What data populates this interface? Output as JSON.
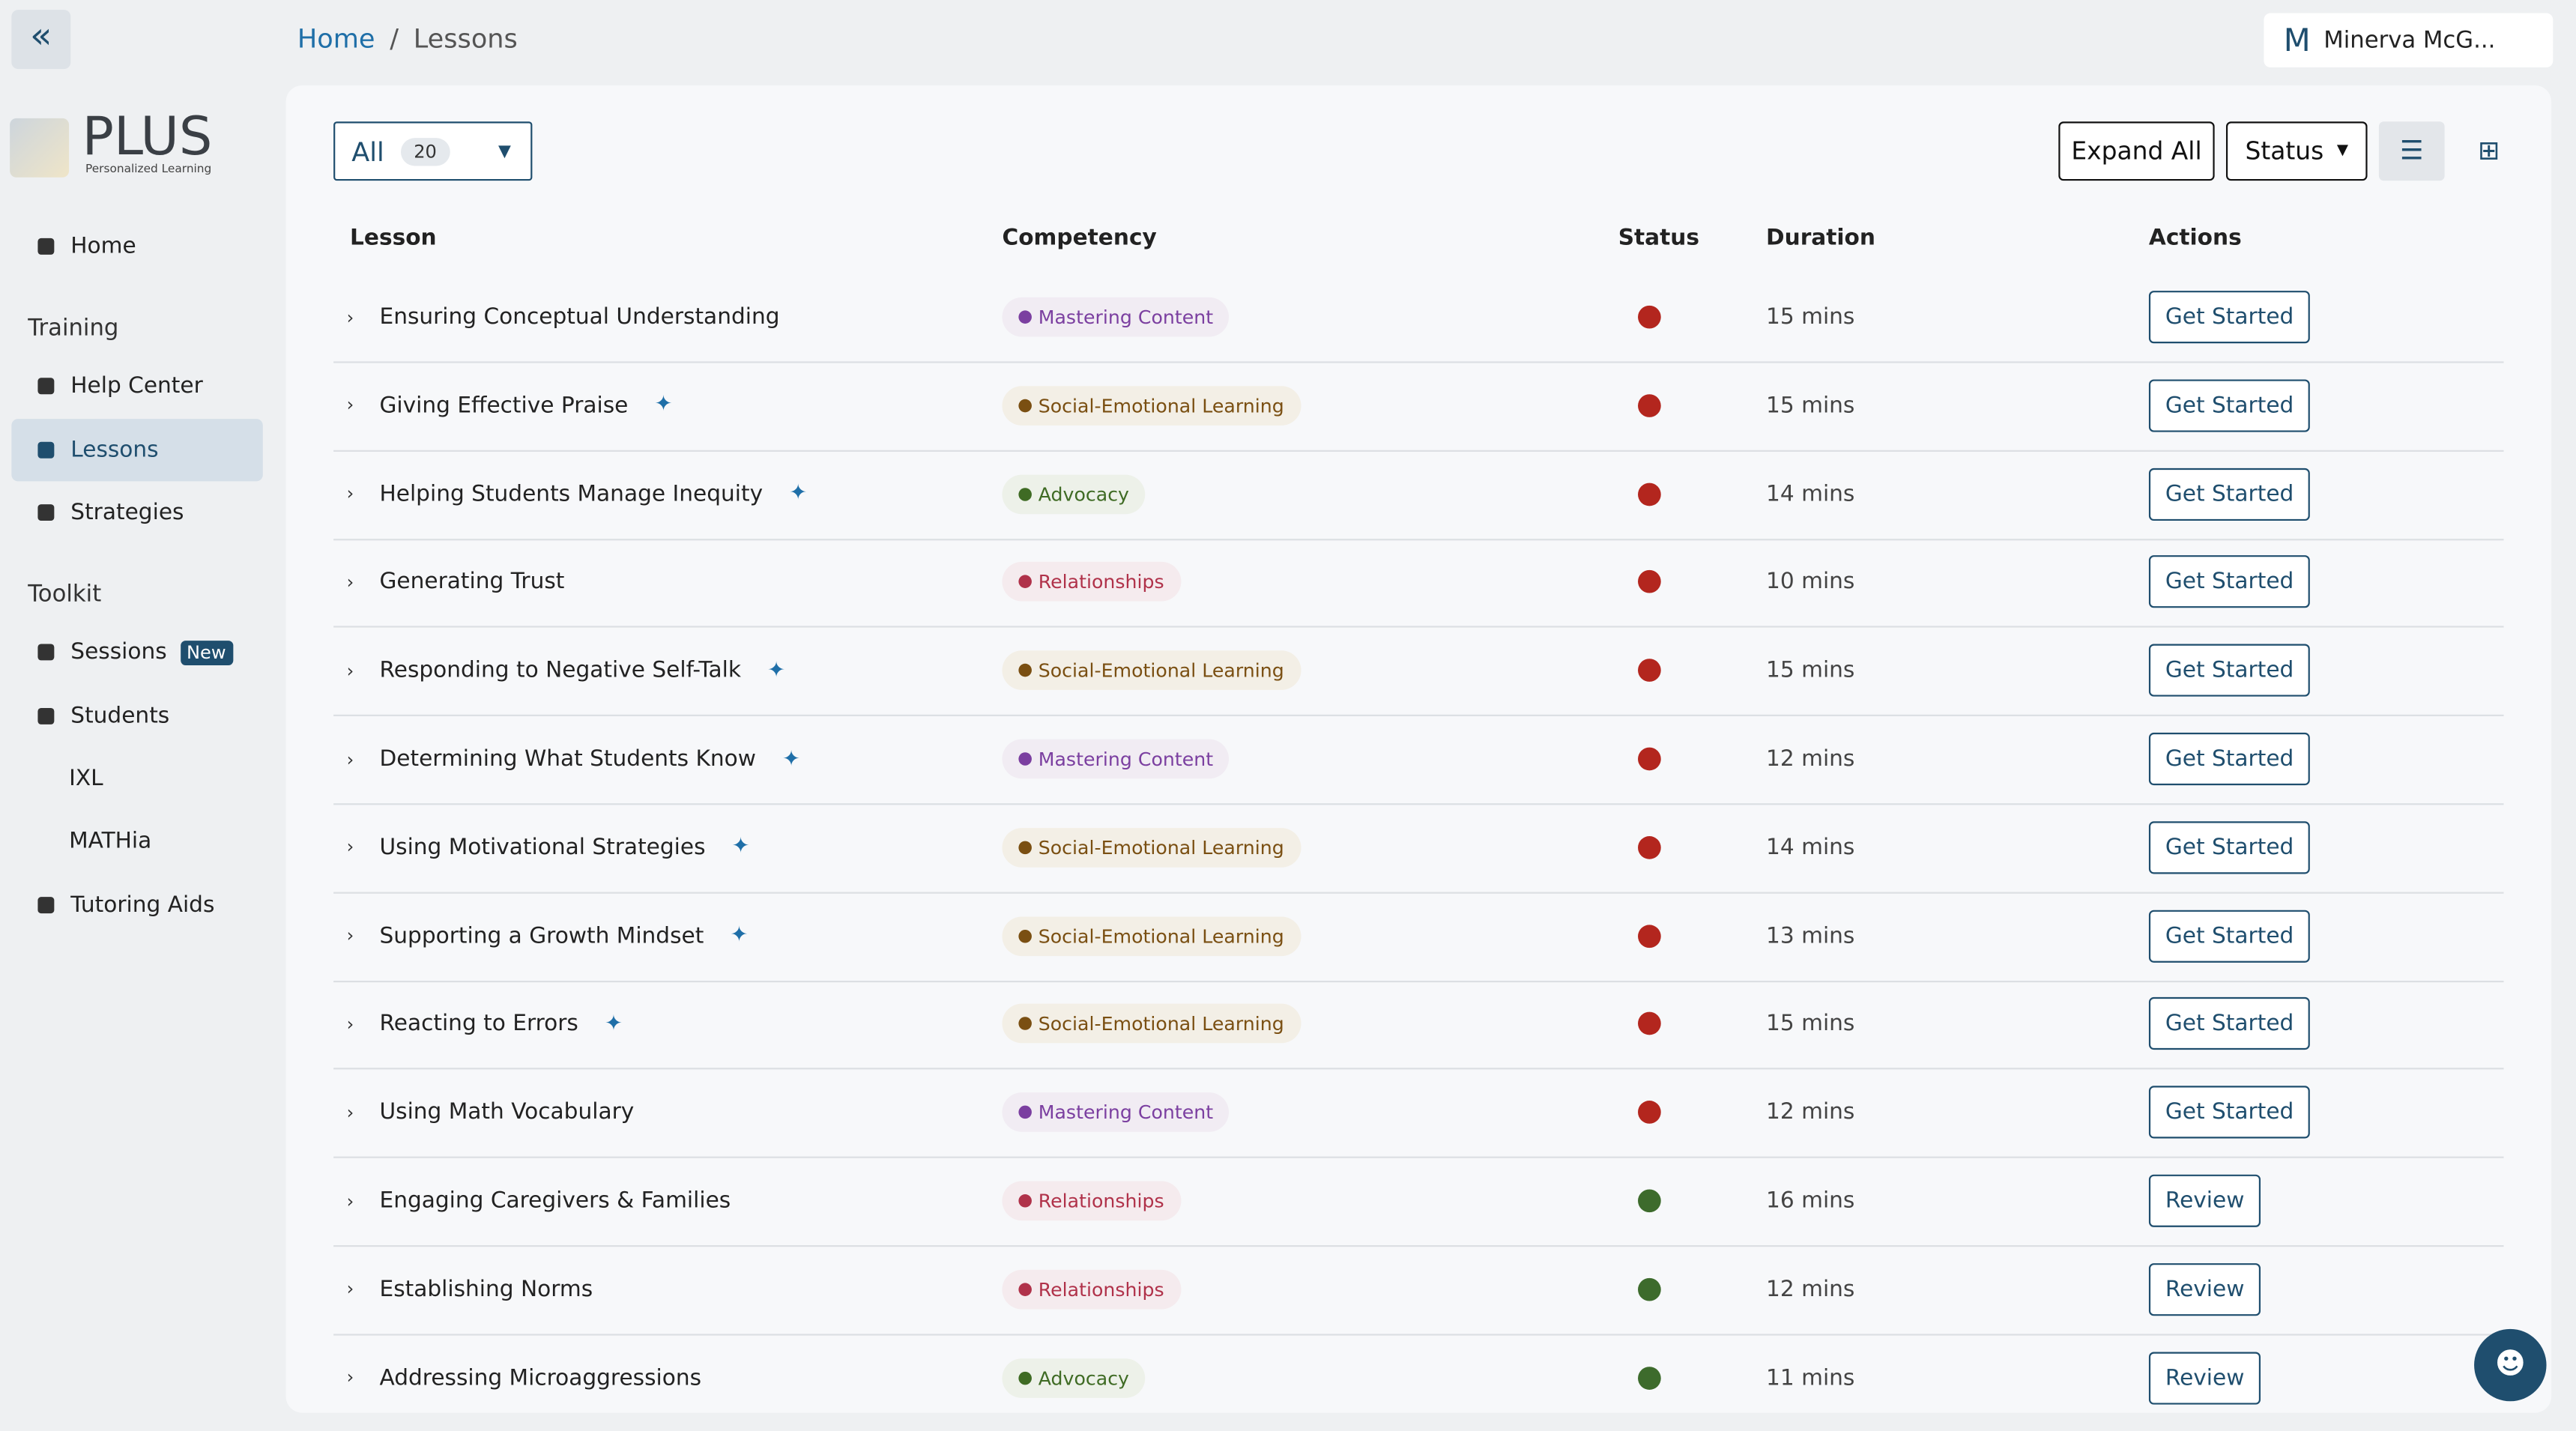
{
  "breadcrumb": [
    "Home",
    "Lessons"
  ],
  "user": {
    "initial": "M",
    "name": "Minerva McG..."
  },
  "logo": {
    "title": "PLUS",
    "subtitle": "Personalized Learning"
  },
  "nav": [
    {
      "label": "Home"
    },
    {
      "section": "Training"
    },
    {
      "label": "Help Center"
    },
    {
      "label": "Lessons",
      "active": true
    },
    {
      "label": "Strategies"
    },
    {
      "section": "Toolkit"
    },
    {
      "label": "Sessions",
      "badge": "New"
    },
    {
      "label": "Students"
    },
    {
      "label": "IXL",
      "sub": true
    },
    {
      "label": "MATHia",
      "sub": true
    },
    {
      "label": "Tutoring Aids"
    }
  ],
  "filter": {
    "label": "All",
    "count": "20"
  },
  "toolbar": {
    "expand": "Expand All",
    "status": "Status"
  },
  "table": {
    "headers": [
      "Lesson",
      "Competency",
      "Status",
      "Duration",
      "Actions"
    ],
    "rows": [
      {
        "lesson": "Ensuring Conceptual Understanding",
        "sparkle": false,
        "competency": "Mastering Content",
        "competency_color": "#7b3fa0",
        "competency_bg": "#f1ecf3",
        "status_color": "#b3261e",
        "duration": "15 mins",
        "action": "Get Started"
      },
      {
        "lesson": "Giving Effective Praise",
        "sparkle": true,
        "competency": "Social-Emotional Learning",
        "competency_color": "#7a4f12",
        "competency_bg": "#f3efe6",
        "status_color": "#b3261e",
        "duration": "15 mins",
        "action": "Get Started"
      },
      {
        "lesson": "Helping Students Manage Inequity",
        "sparkle": true,
        "competency": "Advocacy",
        "competency_color": "#3f6b24",
        "competency_bg": "#edf1e9",
        "status_color": "#b3261e",
        "duration": "14 mins",
        "action": "Get Started"
      },
      {
        "lesson": "Generating Trust",
        "sparkle": false,
        "competency": "Relationships",
        "competency_color": "#b0324a",
        "competency_bg": "#f5ebee",
        "status_color": "#b3261e",
        "duration": "10 mins",
        "action": "Get Started"
      },
      {
        "lesson": "Responding to Negative Self-Talk",
        "sparkle": true,
        "competency": "Social-Emotional Learning",
        "competency_color": "#7a4f12",
        "competency_bg": "#f3efe6",
        "status_color": "#b3261e",
        "duration": "15 mins",
        "action": "Get Started"
      },
      {
        "lesson": "Determining What Students Know",
        "sparkle": true,
        "competency": "Mastering Content",
        "competency_color": "#7b3fa0",
        "competency_bg": "#f1ecf3",
        "status_color": "#b3261e",
        "duration": "12 mins",
        "action": "Get Started"
      },
      {
        "lesson": "Using Motivational Strategies",
        "sparkle": true,
        "competency": "Social-Emotional Learning",
        "competency_color": "#7a4f12",
        "competency_bg": "#f3efe6",
        "status_color": "#b3261e",
        "duration": "14 mins",
        "action": "Get Started"
      },
      {
        "lesson": "Supporting a Growth Mindset",
        "sparkle": true,
        "competency": "Social-Emotional Learning",
        "competency_color": "#7a4f12",
        "competency_bg": "#f3efe6",
        "status_color": "#b3261e",
        "duration": "13 mins",
        "action": "Get Started"
      },
      {
        "lesson": "Reacting to Errors",
        "sparkle": true,
        "competency": "Social-Emotional Learning",
        "competency_color": "#7a4f12",
        "competency_bg": "#f3efe6",
        "status_color": "#b3261e",
        "duration": "15 mins",
        "action": "Get Started"
      },
      {
        "lesson": "Using Math Vocabulary",
        "sparkle": false,
        "competency": "Mastering Content",
        "competency_color": "#7b3fa0",
        "competency_bg": "#f1ecf3",
        "status_color": "#b3261e",
        "duration": "12 mins",
        "action": "Get Started"
      },
      {
        "lesson": "Engaging Caregivers & Families",
        "sparkle": false,
        "competency": "Relationships",
        "competency_color": "#b0324a",
        "competency_bg": "#f5ebee",
        "status_color": "#3d6b2c",
        "duration": "16 mins",
        "action": "Review"
      },
      {
        "lesson": "Establishing Norms",
        "sparkle": false,
        "competency": "Relationships",
        "competency_color": "#b0324a",
        "competency_bg": "#f5ebee",
        "status_color": "#3d6b2c",
        "duration": "12 mins",
        "action": "Review"
      },
      {
        "lesson": "Addressing Microaggressions",
        "sparkle": false,
        "competency": "Advocacy",
        "competency_color": "#3f6b24",
        "competency_bg": "#edf1e9",
        "status_color": "#3d6b2c",
        "duration": "11 mins",
        "action": "Review"
      }
    ]
  }
}
